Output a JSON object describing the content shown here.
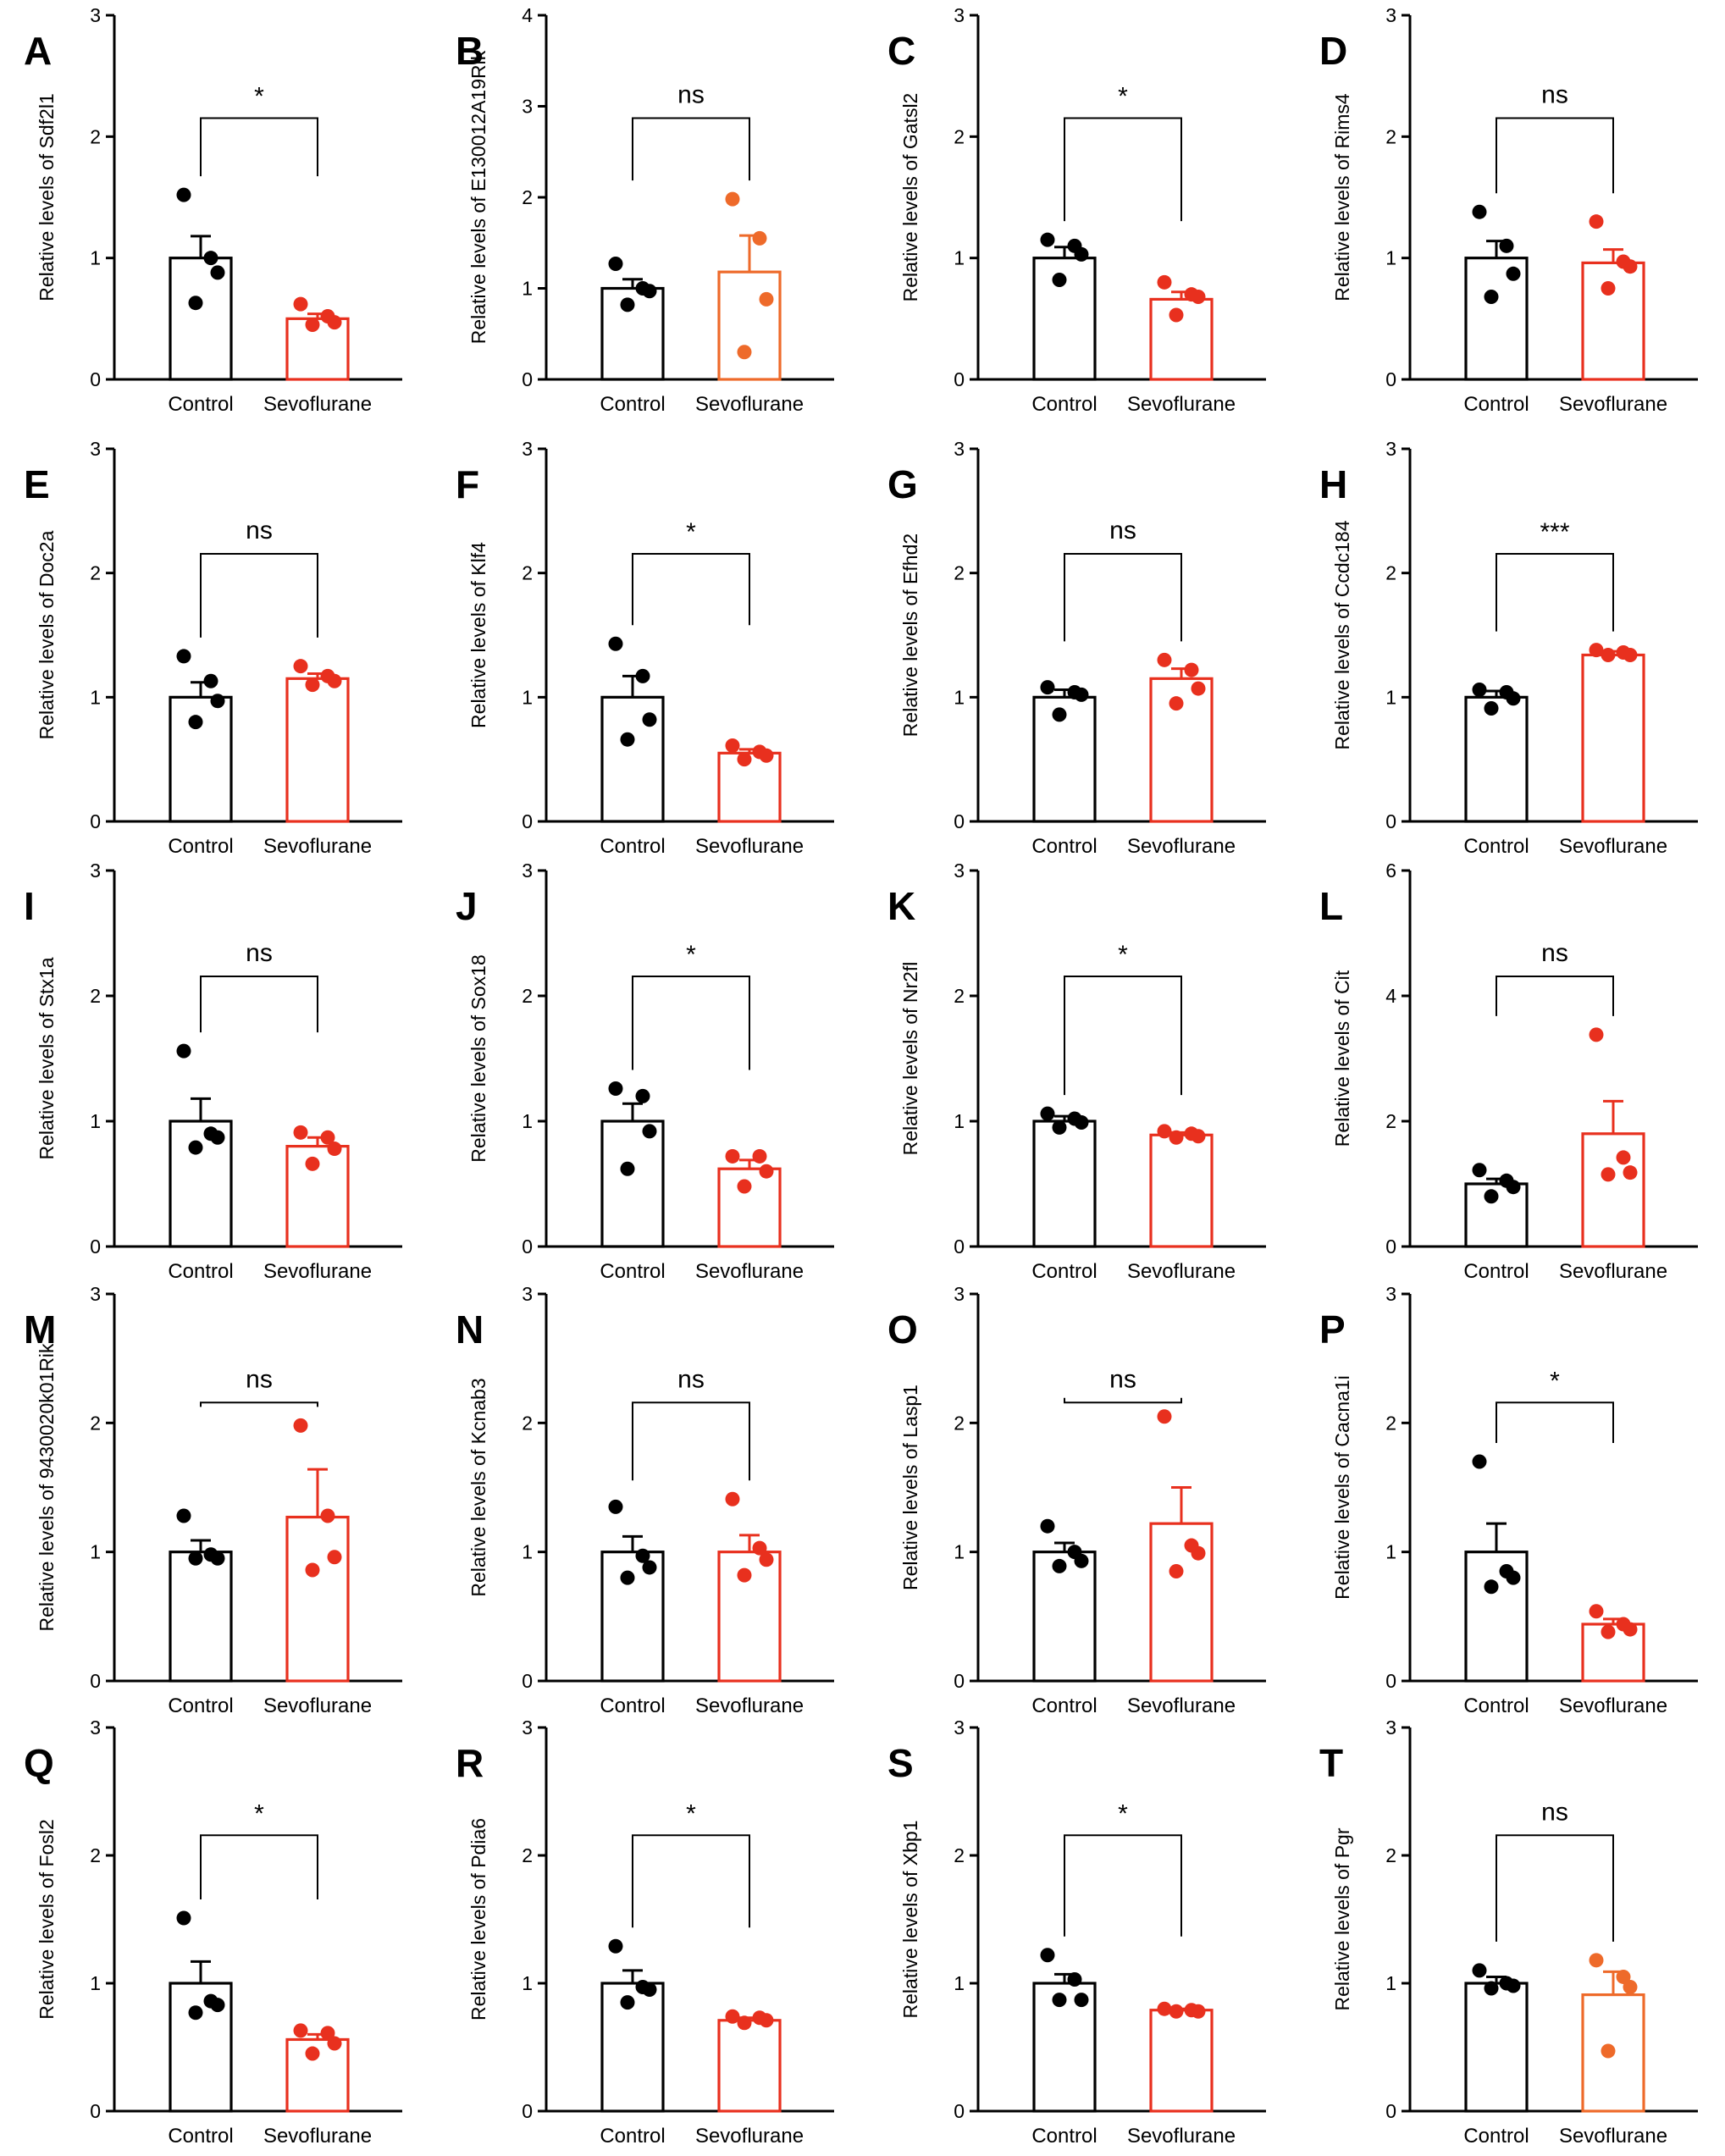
{
  "colors": {
    "control": "#000000",
    "sevo": "#e8301e",
    "sevo_alt": "#ee6a2a",
    "axis": "#000000"
  },
  "chart_data": [
    {
      "panel": "A",
      "type": "bar",
      "categories": [
        "Control",
        "Sevoflurane"
      ],
      "ylabel": "Relative levels of Sdf2l1",
      "ylim": [
        0,
        3
      ],
      "yticks": [
        "0",
        "1",
        "2",
        "3"
      ],
      "significance": "*",
      "series": [
        {
          "values": [
            1.0,
            0.5
          ],
          "errors": [
            0.18,
            0.04
          ],
          "points": [
            [
              1.52,
              1.0,
              0.88,
              0.63
            ],
            [
              0.62,
              0.52,
              0.47,
              0.45
            ]
          ]
        }
      ]
    },
    {
      "panel": "B",
      "type": "bar",
      "categories": [
        "Control",
        "Sevoflurane"
      ],
      "ylabel": "Relative levels of E130012A19Rik",
      "ylim": [
        0,
        4
      ],
      "yticks": [
        "0",
        "1",
        "2",
        "3",
        "4"
      ],
      "significance": "ns",
      "series": [
        {
          "values": [
            1.0,
            1.18
          ],
          "errors": [
            0.1,
            0.4
          ],
          "points": [
            [
              1.27,
              1.0,
              0.97,
              0.82
            ],
            [
              1.98,
              1.55,
              0.88,
              0.3
            ]
          ]
        }
      ]
    },
    {
      "panel": "C",
      "type": "bar",
      "categories": [
        "Control",
        "Sevoflurane"
      ],
      "ylabel": "Relative levels of Gatsl2",
      "ylim": [
        0,
        3
      ],
      "yticks": [
        "0",
        "1",
        "2",
        "3"
      ],
      "significance": "*",
      "series": [
        {
          "values": [
            1.0,
            0.66
          ],
          "errors": [
            0.09,
            0.06
          ],
          "points": [
            [
              1.15,
              1.1,
              1.03,
              0.82
            ],
            [
              0.8,
              0.7,
              0.68,
              0.53
            ]
          ]
        }
      ]
    },
    {
      "panel": "D",
      "type": "bar",
      "categories": [
        "Control",
        "Sevoflurane"
      ],
      "ylabel": "Relative levels of Rims4",
      "ylim": [
        0,
        3
      ],
      "yticks": [
        "0",
        "1",
        "2",
        "3"
      ],
      "significance": "ns",
      "series": [
        {
          "values": [
            1.0,
            0.96
          ],
          "errors": [
            0.14,
            0.11
          ],
          "points": [
            [
              1.38,
              1.1,
              0.87,
              0.68
            ],
            [
              1.3,
              0.97,
              0.93,
              0.75
            ]
          ]
        }
      ]
    },
    {
      "panel": "E",
      "type": "bar",
      "categories": [
        "Control",
        "Sevoflurane"
      ],
      "ylabel": "Relative levels of Doc2a",
      "ylim": [
        0,
        3
      ],
      "yticks": [
        "0",
        "1",
        "2",
        "3"
      ],
      "significance": "ns",
      "series": [
        {
          "values": [
            1.0,
            1.15
          ],
          "errors": [
            0.12,
            0.04
          ],
          "points": [
            [
              1.33,
              1.13,
              0.97,
              0.8
            ],
            [
              1.25,
              1.17,
              1.13,
              1.1
            ]
          ]
        }
      ]
    },
    {
      "panel": "F",
      "type": "bar",
      "categories": [
        "Control",
        "Sevoflurane"
      ],
      "ylabel": "Relative levels of Klf4",
      "ylim": [
        0,
        3
      ],
      "yticks": [
        "0",
        "1",
        "2",
        "3"
      ],
      "significance": "*",
      "series": [
        {
          "values": [
            1.0,
            0.55
          ],
          "errors": [
            0.17,
            0.03
          ],
          "points": [
            [
              1.43,
              1.17,
              0.82,
              0.66
            ],
            [
              0.61,
              0.56,
              0.53,
              0.5
            ]
          ]
        }
      ]
    },
    {
      "panel": "G",
      "type": "bar",
      "categories": [
        "Control",
        "Sevoflurane"
      ],
      "ylabel": "Relative levels of Efhd2",
      "ylim": [
        0,
        3
      ],
      "yticks": [
        "0",
        "1",
        "2",
        "3"
      ],
      "significance": "ns",
      "series": [
        {
          "values": [
            1.0,
            1.15
          ],
          "errors": [
            0.06,
            0.08
          ],
          "points": [
            [
              1.08,
              1.04,
              1.02,
              0.86
            ],
            [
              1.3,
              1.22,
              1.07,
              0.95
            ]
          ]
        }
      ]
    },
    {
      "panel": "H",
      "type": "bar",
      "categories": [
        "Control",
        "Sevoflurane"
      ],
      "ylabel": "Relative levels of Ccdc184",
      "ylim": [
        0,
        3
      ],
      "yticks": [
        "0",
        "1",
        "2",
        "3"
      ],
      "significance": "***",
      "series": [
        {
          "values": [
            1.0,
            1.34
          ],
          "errors": [
            0.05,
            0.03
          ],
          "points": [
            [
              1.06,
              1.04,
              0.99,
              0.91
            ],
            [
              1.38,
              1.36,
              1.34,
              1.34
            ]
          ]
        }
      ]
    },
    {
      "panel": "I",
      "type": "bar",
      "categories": [
        "Control",
        "Sevoflurane"
      ],
      "ylabel": "Relative levels of Stx1a",
      "ylim": [
        0,
        3
      ],
      "yticks": [
        "0",
        "1",
        "2",
        "3"
      ],
      "significance": "ns",
      "series": [
        {
          "values": [
            1.0,
            0.8
          ],
          "errors": [
            0.18,
            0.07
          ],
          "points": [
            [
              1.56,
              0.9,
              0.87,
              0.79
            ],
            [
              0.91,
              0.87,
              0.78,
              0.66
            ]
          ]
        }
      ]
    },
    {
      "panel": "J",
      "type": "bar",
      "categories": [
        "Control",
        "Sevoflurane"
      ],
      "ylabel": "Relative levels of Sox18",
      "ylim": [
        0,
        3
      ],
      "yticks": [
        "0",
        "1",
        "2",
        "3"
      ],
      "significance": "*",
      "series": [
        {
          "values": [
            1.0,
            0.62
          ],
          "errors": [
            0.14,
            0.07
          ],
          "points": [
            [
              1.26,
              1.2,
              0.92,
              0.62
            ],
            [
              0.72,
              0.72,
              0.6,
              0.48
            ]
          ]
        }
      ]
    },
    {
      "panel": "K",
      "type": "bar",
      "categories": [
        "Control",
        "Sevoflurane"
      ],
      "ylabel": "Relative levels of Nr2fl",
      "ylim": [
        0,
        3
      ],
      "yticks": [
        "0",
        "1",
        "2",
        "3"
      ],
      "significance": "*",
      "series": [
        {
          "values": [
            1.0,
            0.89
          ],
          "errors": [
            0.04,
            0.02
          ],
          "points": [
            [
              1.06,
              1.02,
              0.99,
              0.95
            ],
            [
              0.92,
              0.9,
              0.88,
              0.87
            ]
          ]
        }
      ]
    },
    {
      "panel": "L",
      "type": "bar",
      "categories": [
        "Control",
        "Sevoflurane"
      ],
      "ylabel": "Relative levels of Cit",
      "ylim": [
        0,
        6
      ],
      "yticks": [
        "0",
        "2",
        "4",
        "6"
      ],
      "significance": "ns",
      "series": [
        {
          "values": [
            1.0,
            1.8
          ],
          "errors": [
            0.08,
            0.52
          ],
          "points": [
            [
              1.22,
              1.05,
              0.95,
              0.8
            ],
            [
              3.38,
              1.42,
              1.18,
              1.15
            ]
          ]
        }
      ]
    },
    {
      "panel": "M",
      "type": "bar",
      "categories": [
        "Control",
        "Sevoflurane"
      ],
      "ylabel": "Relative levels of 9430020k01Rik",
      "ylim": [
        0,
        3
      ],
      "yticks": [
        "0",
        "1",
        "2",
        "3"
      ],
      "significance": "ns",
      "series": [
        {
          "values": [
            1.0,
            1.27
          ],
          "errors": [
            0.09,
            0.37
          ],
          "points": [
            [
              1.28,
              0.98,
              0.95,
              0.95
            ],
            [
              1.98,
              1.28,
              0.96,
              0.86
            ]
          ]
        }
      ]
    },
    {
      "panel": "N",
      "type": "bar",
      "categories": [
        "Control",
        "Sevoflurane"
      ],
      "ylabel": "Relative levels of Kcnab3",
      "ylim": [
        0,
        3
      ],
      "yticks": [
        "0",
        "1",
        "2",
        "3"
      ],
      "significance": "ns",
      "series": [
        {
          "values": [
            1.0,
            1.0
          ],
          "errors": [
            0.12,
            0.13
          ],
          "points": [
            [
              1.35,
              0.97,
              0.88,
              0.8
            ],
            [
              1.41,
              1.03,
              0.94,
              0.82
            ]
          ]
        }
      ]
    },
    {
      "panel": "O",
      "type": "bar",
      "categories": [
        "Control",
        "Sevoflurane"
      ],
      "ylabel": "Relative levels of Lasp1",
      "ylim": [
        0,
        3
      ],
      "yticks": [
        "0",
        "1",
        "2",
        "3"
      ],
      "significance": "ns",
      "series": [
        {
          "values": [
            1.0,
            1.22
          ],
          "errors": [
            0.07,
            0.28
          ],
          "points": [
            [
              1.2,
              1.0,
              0.93,
              0.89
            ],
            [
              2.05,
              1.05,
              0.99,
              0.85
            ]
          ]
        }
      ]
    },
    {
      "panel": "P",
      "type": "bar",
      "categories": [
        "Control",
        "Sevoflurane"
      ],
      "ylabel": "Relative levels of Cacna1i",
      "ylim": [
        0,
        3
      ],
      "yticks": [
        "0",
        "1",
        "2",
        "3"
      ],
      "significance": "*",
      "series": [
        {
          "values": [
            1.0,
            0.44
          ],
          "errors": [
            0.22,
            0.04
          ],
          "points": [
            [
              1.7,
              0.85,
              0.8,
              0.73
            ],
            [
              0.54,
              0.44,
              0.4,
              0.38
            ]
          ]
        }
      ]
    },
    {
      "panel": "Q",
      "type": "bar",
      "categories": [
        "Control",
        "Sevoflurane"
      ],
      "ylabel": "Relative levels of Fosl2",
      "ylim": [
        0,
        3
      ],
      "yticks": [
        "0",
        "1",
        "2",
        "3"
      ],
      "significance": "*",
      "series": [
        {
          "values": [
            1.0,
            0.56
          ],
          "errors": [
            0.17,
            0.04
          ],
          "points": [
            [
              1.51,
              0.86,
              0.83,
              0.77
            ],
            [
              0.63,
              0.61,
              0.53,
              0.45
            ]
          ]
        }
      ]
    },
    {
      "panel": "R",
      "type": "bar",
      "categories": [
        "Control",
        "Sevoflurane"
      ],
      "ylabel": "Relative levels of Pdia6",
      "ylim": [
        0,
        3
      ],
      "yticks": [
        "0",
        "1",
        "2",
        "3"
      ],
      "significance": "*",
      "series": [
        {
          "values": [
            1.0,
            0.71
          ],
          "errors": [
            0.1,
            0.02
          ],
          "points": [
            [
              1.29,
              0.97,
              0.95,
              0.85
            ],
            [
              0.74,
              0.73,
              0.71,
              0.69
            ]
          ]
        }
      ]
    },
    {
      "panel": "S",
      "type": "bar",
      "categories": [
        "Control",
        "Sevoflurane"
      ],
      "ylabel": "Relative levels of Xbp1",
      "ylim": [
        0,
        3
      ],
      "yticks": [
        "0",
        "1",
        "2",
        "3"
      ],
      "significance": "*",
      "series": [
        {
          "values": [
            1.0,
            0.79
          ],
          "errors": [
            0.07,
            0.01
          ],
          "points": [
            [
              1.22,
              1.03,
              0.87,
              0.87
            ],
            [
              0.8,
              0.79,
              0.78,
              0.78
            ]
          ]
        }
      ]
    },
    {
      "panel": "T",
      "type": "bar",
      "categories": [
        "Control",
        "Sevoflurane"
      ],
      "ylabel": "Relative levels of Pgr",
      "ylim": [
        0,
        3
      ],
      "yticks": [
        "0",
        "1",
        "2",
        "3"
      ],
      "significance": "ns",
      "series": [
        {
          "values": [
            1.0,
            0.91
          ],
          "errors": [
            0.05,
            0.18
          ],
          "points": [
            [
              1.1,
              1.0,
              0.98,
              0.96
            ],
            [
              1.18,
              1.05,
              0.97,
              0.47
            ]
          ]
        }
      ]
    }
  ]
}
